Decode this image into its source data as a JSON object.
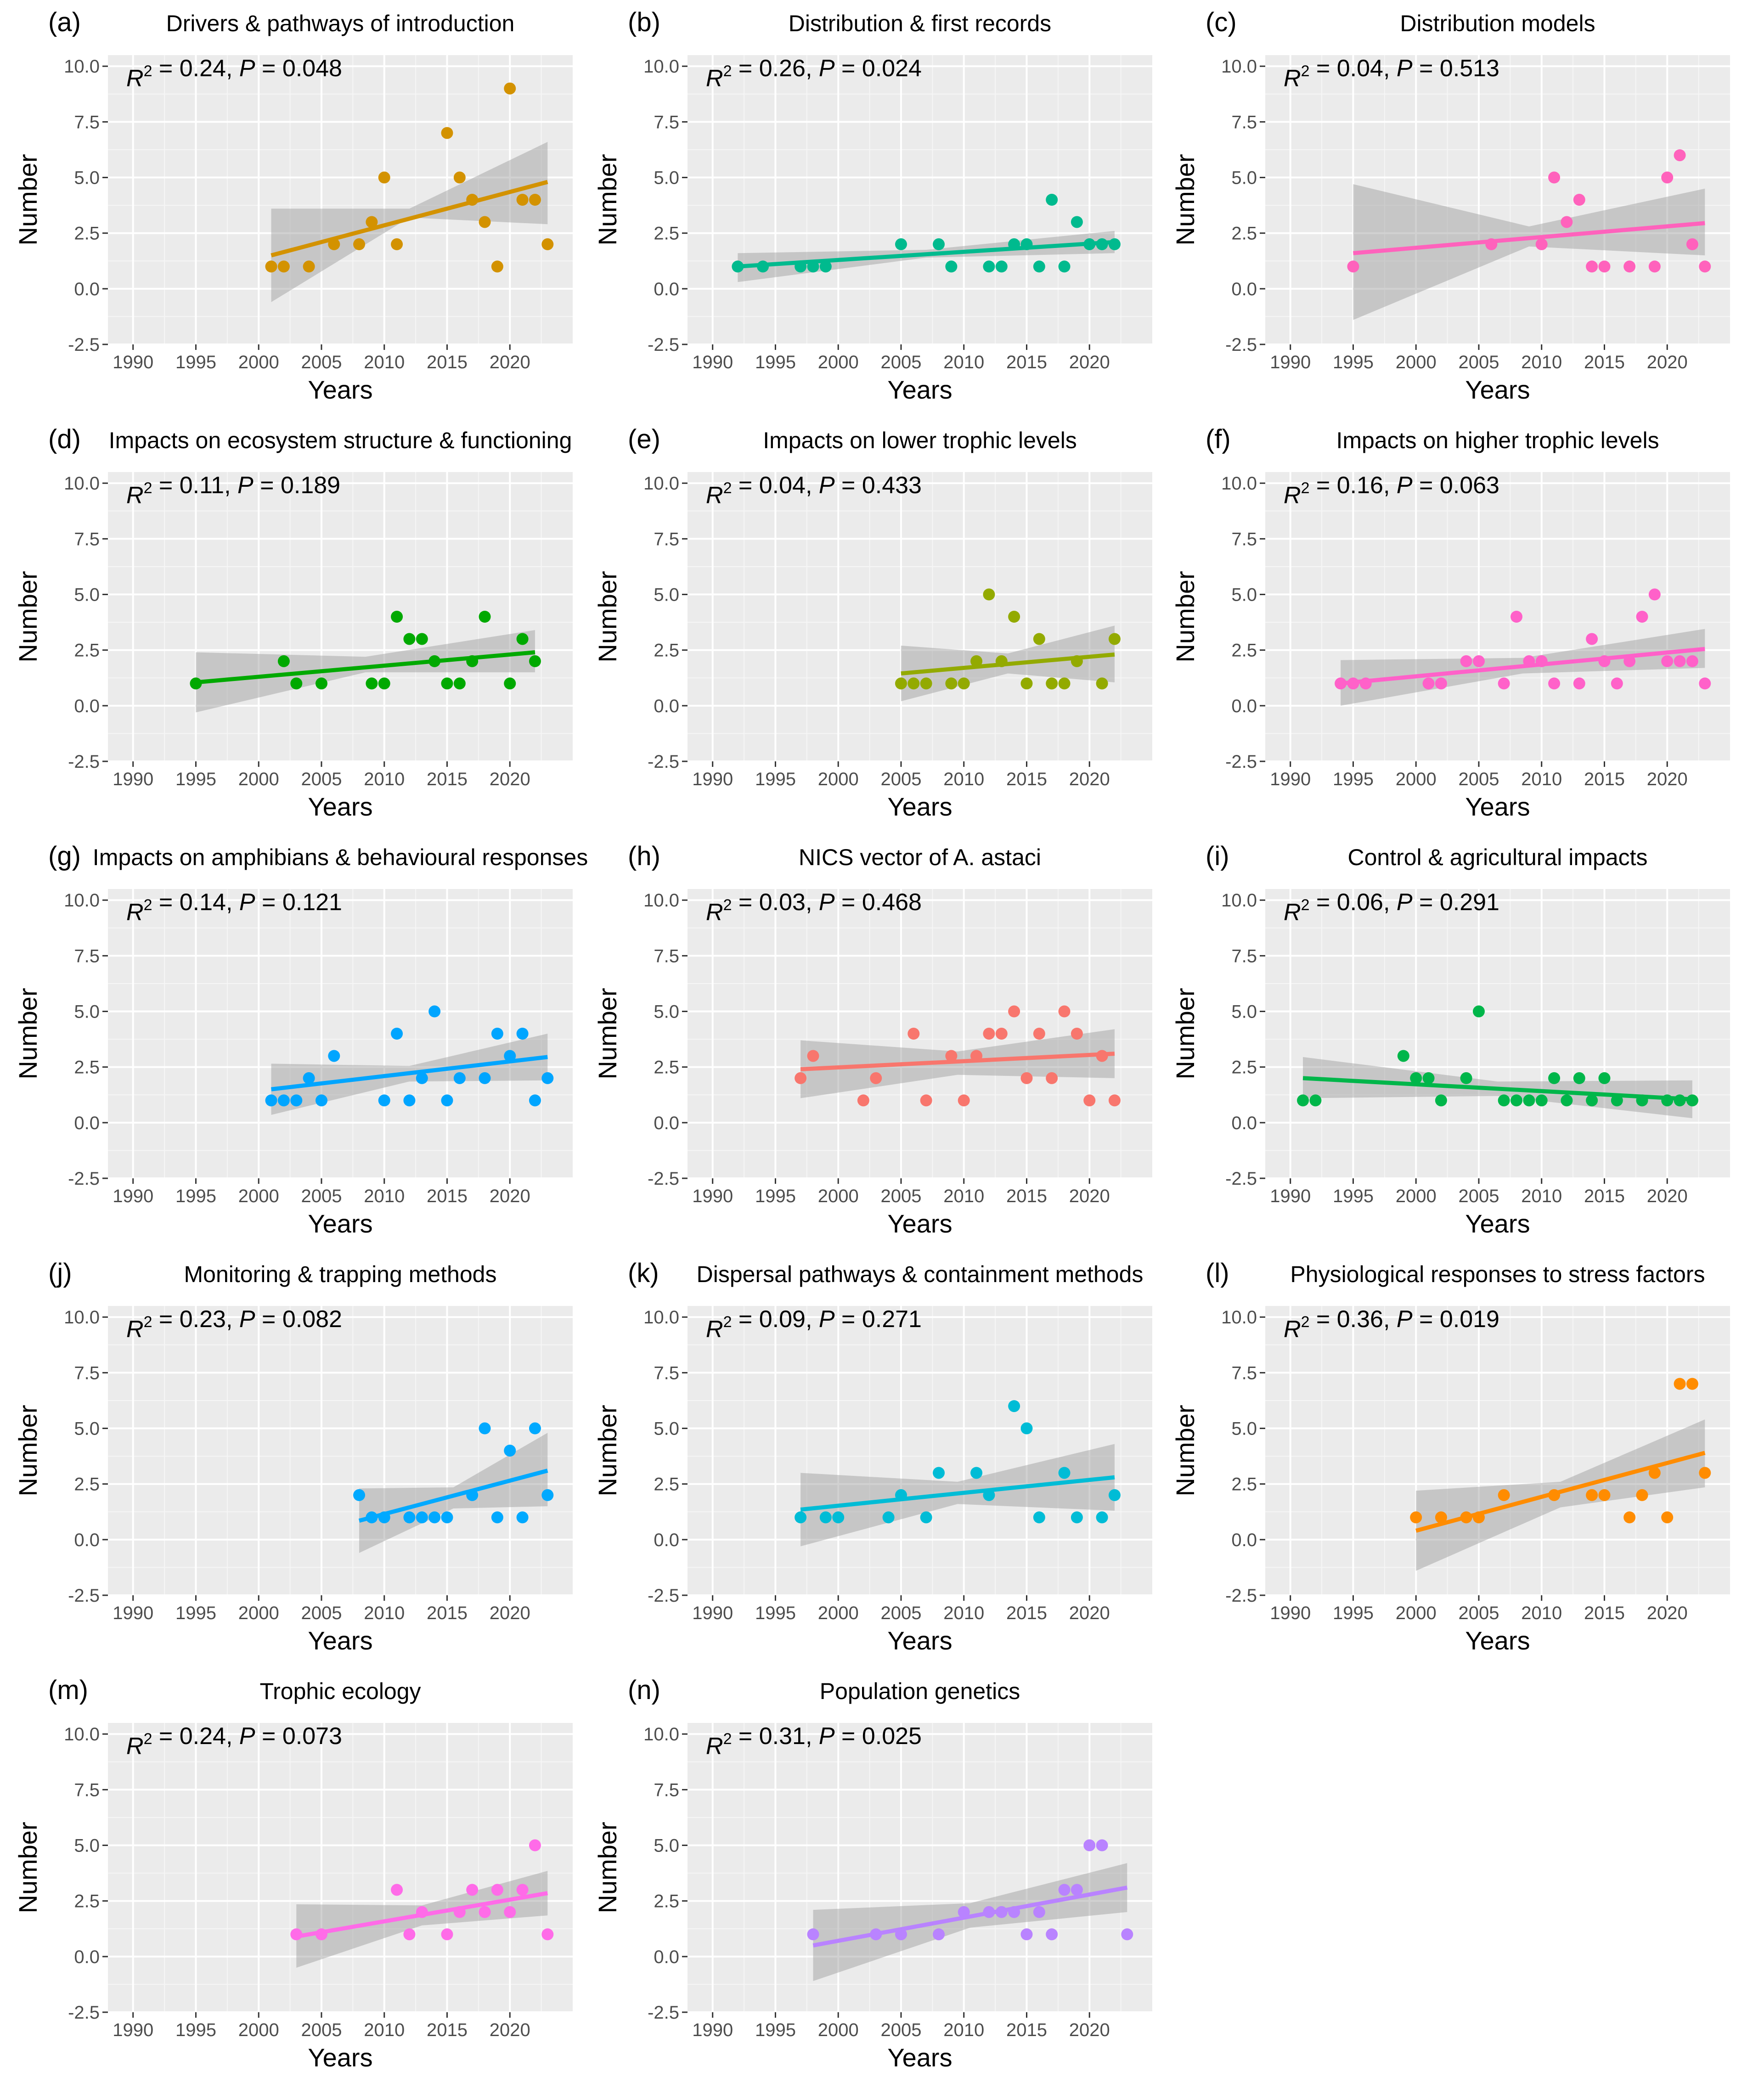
{
  "figure": {
    "x_axis_title": "Years",
    "y_axis_title": "Number"
  },
  "chart_data": [
    {
      "id": "a",
      "letter": "(a)",
      "type": "scatter",
      "title": "Drivers & pathways of introduction",
      "stats": {
        "r2": "0.24",
        "p": "0.048"
      },
      "color": "#D39200",
      "xlabel": "Years",
      "ylabel": "Number",
      "xlim": [
        1988,
        2025
      ],
      "ylim": [
        -2.5,
        10.5
      ],
      "x_ticks": [
        1990,
        1995,
        2000,
        2005,
        2010,
        2015,
        2020
      ],
      "y_ticks": [
        "-2.5",
        "0.0",
        "2.5",
        "5.0",
        "7.5",
        "10.0"
      ],
      "x": [
        2001,
        2002,
        2004,
        2006,
        2008,
        2009,
        2010,
        2011,
        2015,
        2016,
        2017,
        2018,
        2019,
        2020,
        2021,
        2022,
        2023
      ],
      "y": [
        1,
        1,
        1,
        2,
        2,
        3,
        5,
        2,
        7,
        5,
        4,
        3,
        1,
        9,
        4,
        4,
        2
      ],
      "fit": {
        "x0": 2001,
        "x1": 2023,
        "y0": 1.5,
        "y1": 4.8
      },
      "ci": {
        "lower": [
          -0.6,
          3.2,
          2.9
        ],
        "upper": [
          3.6,
          3.6,
          6.6
        ]
      }
    },
    {
      "id": "b",
      "letter": "(b)",
      "type": "scatter",
      "title": "Distribution & first records",
      "stats": {
        "r2": "0.26",
        "p": "0.024"
      },
      "color": "#00BA8E",
      "xlabel": "Years",
      "ylabel": "Number",
      "xlim": [
        1988,
        2025
      ],
      "ylim": [
        -2.5,
        10.5
      ],
      "x_ticks": [
        1990,
        1995,
        2000,
        2005,
        2010,
        2015,
        2020
      ],
      "y_ticks": [
        "-2.5",
        "0.0",
        "2.5",
        "5.0",
        "7.5",
        "10.0"
      ],
      "x": [
        1992,
        1994,
        1997,
        1998,
        1999,
        2005,
        2008,
        2009,
        2012,
        2013,
        2014,
        2015,
        2016,
        2017,
        2018,
        2019,
        2020,
        2021,
        2022
      ],
      "y": [
        1,
        1,
        1,
        1,
        1,
        2,
        2,
        1,
        1,
        1,
        2,
        2,
        1,
        4,
        1,
        3,
        2,
        2,
        2
      ],
      "fit": {
        "x0": 1992,
        "x1": 2022,
        "y0": 1.0,
        "y1": 2.1
      },
      "ci": {
        "lower": [
          0.3,
          1.4,
          1.6
        ],
        "upper": [
          1.6,
          1.75,
          2.6
        ]
      }
    },
    {
      "id": "c",
      "letter": "(c)",
      "type": "scatter",
      "title": "Distribution models",
      "stats": {
        "r2": "0.04",
        "p": "0.513"
      },
      "color": "#FF62BC",
      "xlabel": "Years",
      "ylabel": "Number",
      "xlim": [
        1988,
        2025
      ],
      "ylim": [
        -2.5,
        10.5
      ],
      "x_ticks": [
        1990,
        1995,
        2000,
        2005,
        2010,
        2015,
        2020
      ],
      "y_ticks": [
        "-2.5",
        "0.0",
        "2.5",
        "5.0",
        "7.5",
        "10.0"
      ],
      "x": [
        1995,
        2006,
        2010,
        2011,
        2012,
        2013,
        2014,
        2015,
        2017,
        2019,
        2020,
        2021,
        2022,
        2023
      ],
      "y": [
        1,
        2,
        2,
        5,
        3,
        4,
        1,
        1,
        1,
        1,
        5,
        6,
        2,
        1
      ],
      "fit": {
        "x0": 1995,
        "x1": 2023,
        "y0": 1.6,
        "y1": 2.95
      },
      "ci": {
        "lower": [
          -1.4,
          1.9,
          1.5
        ],
        "upper": [
          4.7,
          2.8,
          4.5
        ]
      }
    },
    {
      "id": "d",
      "letter": "(d)",
      "type": "scatter",
      "title": "Impacts on ecosystem structure & functioning",
      "stats": {
        "r2": "0.11",
        "p": "0.189"
      },
      "color": "#00A900",
      "xlabel": "Years",
      "ylabel": "Number",
      "xlim": [
        1988,
        2025
      ],
      "ylim": [
        -2.5,
        10.5
      ],
      "x_ticks": [
        1990,
        1995,
        2000,
        2005,
        2010,
        2015,
        2020
      ],
      "y_ticks": [
        "-2.5",
        "0.0",
        "2.5",
        "5.0",
        "7.5",
        "10.0"
      ],
      "x": [
        1995,
        2002,
        2003,
        2005,
        2009,
        2010,
        2011,
        2012,
        2013,
        2014,
        2015,
        2016,
        2017,
        2018,
        2020,
        2021,
        2022
      ],
      "y": [
        1,
        2,
        1,
        1,
        1,
        1,
        4,
        3,
        3,
        2,
        1,
        1,
        2,
        4,
        1,
        3,
        2
      ],
      "fit": {
        "x0": 1995,
        "x1": 2022,
        "y0": 1.05,
        "y1": 2.4
      },
      "ci": {
        "lower": [
          -0.3,
          1.5,
          1.5
        ],
        "upper": [
          2.4,
          2.2,
          3.4
        ]
      }
    },
    {
      "id": "e",
      "letter": "(e)",
      "type": "scatter",
      "title": "Impacts on lower trophic levels",
      "stats": {
        "r2": "0.04",
        "p": "0.433"
      },
      "color": "#93AA00",
      "xlabel": "Years",
      "ylabel": "Number",
      "xlim": [
        1988,
        2025
      ],
      "ylim": [
        -2.5,
        10.5
      ],
      "x_ticks": [
        1990,
        1995,
        2000,
        2005,
        2010,
        2015,
        2020
      ],
      "y_ticks": [
        "-2.5",
        "0.0",
        "2.5",
        "5.0",
        "7.5",
        "10.0"
      ],
      "x": [
        2005,
        2006,
        2007,
        2009,
        2010,
        2011,
        2012,
        2013,
        2014,
        2015,
        2016,
        2017,
        2018,
        2019,
        2021,
        2022
      ],
      "y": [
        1,
        1,
        1,
        1,
        1,
        2,
        5,
        2,
        4,
        1,
        3,
        1,
        1,
        2,
        1,
        3
      ],
      "fit": {
        "x0": 2005,
        "x1": 2022,
        "y0": 1.45,
        "y1": 2.3
      },
      "ci": {
        "lower": [
          0.2,
          1.45,
          1.05
        ],
        "upper": [
          2.7,
          2.35,
          3.6
        ]
      }
    },
    {
      "id": "f",
      "letter": "(f)",
      "type": "scatter",
      "title": "Impacts on higher trophic levels",
      "stats": {
        "r2": "0.16",
        "p": "0.063"
      },
      "color": "#FF61C9",
      "xlabel": "Years",
      "ylabel": "Number",
      "xlim": [
        1988,
        2025
      ],
      "ylim": [
        -2.5,
        10.5
      ],
      "x_ticks": [
        1990,
        1995,
        2000,
        2005,
        2010,
        2015,
        2020
      ],
      "y_ticks": [
        "-2.5",
        "0.0",
        "2.5",
        "5.0",
        "7.5",
        "10.0"
      ],
      "x": [
        1994,
        1995,
        1996,
        2001,
        2002,
        2004,
        2005,
        2007,
        2008,
        2009,
        2010,
        2011,
        2013,
        2014,
        2015,
        2016,
        2017,
        2018,
        2019,
        2020,
        2021,
        2022,
        2023
      ],
      "y": [
        1,
        1,
        1,
        1,
        1,
        2,
        2,
        1,
        4,
        2,
        2,
        1,
        1,
        3,
        2,
        1,
        2,
        4,
        5,
        2,
        2,
        2,
        1
      ],
      "fit": {
        "x0": 1994,
        "x1": 2023,
        "y0": 1.0,
        "y1": 2.55
      },
      "ci": {
        "lower": [
          0.0,
          1.45,
          1.7
        ],
        "upper": [
          2.05,
          2.15,
          3.45
        ]
      }
    },
    {
      "id": "g",
      "letter": "(g)",
      "type": "scatter",
      "title": "Impacts on amphibians & behavioural responses",
      "stats": {
        "r2": "0.14",
        "p": "0.121"
      },
      "color": "#00A5FF",
      "xlabel": "Years",
      "ylabel": "Number",
      "xlim": [
        1988,
        2025
      ],
      "ylim": [
        -2.5,
        10.5
      ],
      "x_ticks": [
        1990,
        1995,
        2000,
        2005,
        2010,
        2015,
        2020
      ],
      "y_ticks": [
        "-2.5",
        "0.0",
        "2.5",
        "5.0",
        "7.5",
        "10.0"
      ],
      "x": [
        2001,
        2002,
        2003,
        2004,
        2005,
        2006,
        2010,
        2011,
        2012,
        2013,
        2014,
        2015,
        2016,
        2018,
        2019,
        2020,
        2021,
        2022,
        2023
      ],
      "y": [
        1,
        1,
        1,
        2,
        1,
        3,
        1,
        4,
        1,
        2,
        5,
        1,
        2,
        2,
        4,
        3,
        4,
        1,
        2
      ],
      "fit": {
        "x0": 2001,
        "x1": 2023,
        "y0": 1.5,
        "y1": 2.95
      },
      "ci": {
        "lower": [
          0.35,
          1.85,
          1.9
        ],
        "upper": [
          2.65,
          2.55,
          4.0
        ]
      }
    },
    {
      "id": "h",
      "letter": "(h)",
      "type": "scatter",
      "title": "NICS vector of A. astaci",
      "stats": {
        "r2": "0.03",
        "p": "0.468"
      },
      "color": "#F8766D",
      "xlabel": "Years",
      "ylabel": "Number",
      "xlim": [
        1988,
        2025
      ],
      "ylim": [
        -2.5,
        10.5
      ],
      "x_ticks": [
        1990,
        1995,
        2000,
        2005,
        2010,
        2015,
        2020
      ],
      "y_ticks": [
        "-2.5",
        "0.0",
        "2.5",
        "5.0",
        "7.5",
        "10.0"
      ],
      "x": [
        1997,
        1998,
        2002,
        2003,
        2006,
        2007,
        2009,
        2010,
        2011,
        2012,
        2013,
        2014,
        2015,
        2016,
        2017,
        2018,
        2019,
        2020,
        2021,
        2022
      ],
      "y": [
        2,
        3,
        1,
        2,
        4,
        1,
        3,
        1,
        3,
        4,
        4,
        5,
        2,
        4,
        2,
        5,
        4,
        1,
        3,
        1
      ],
      "fit": {
        "x0": 1997,
        "x1": 2022,
        "y0": 2.4,
        "y1": 3.1
      },
      "ci": {
        "lower": [
          1.1,
          2.15,
          2.0
        ],
        "upper": [
          3.7,
          3.2,
          4.2
        ]
      }
    },
    {
      "id": "i",
      "letter": "(i)",
      "type": "scatter",
      "title": "Control & agricultural impacts",
      "stats": {
        "r2": "0.06",
        "p": "0.291"
      },
      "color": "#00B64A",
      "xlabel": "Years",
      "ylabel": "Number",
      "xlim": [
        1988,
        2025
      ],
      "ylim": [
        -2.5,
        10.5
      ],
      "x_ticks": [
        1990,
        1995,
        2000,
        2005,
        2010,
        2015,
        2020
      ],
      "y_ticks": [
        "-2.5",
        "0.0",
        "2.5",
        "5.0",
        "7.5",
        "10.0"
      ],
      "x": [
        1991,
        1992,
        1999,
        2000,
        2001,
        2002,
        2004,
        2005,
        2007,
        2008,
        2009,
        2010,
        2011,
        2012,
        2013,
        2014,
        2015,
        2016,
        2018,
        2020,
        2021,
        2022
      ],
      "y": [
        1,
        1,
        3,
        2,
        2,
        1,
        2,
        5,
        1,
        1,
        1,
        1,
        2,
        1,
        2,
        1,
        2,
        1,
        1,
        1,
        1,
        1
      ],
      "fit": {
        "x0": 1991,
        "x1": 2022,
        "y0": 2.0,
        "y1": 1.05
      },
      "ci": {
        "lower": [
          1.1,
          1.2,
          0.2
        ],
        "upper": [
          2.95,
          1.85,
          1.9
        ]
      }
    },
    {
      "id": "j",
      "letter": "(j)",
      "type": "scatter",
      "title": "Monitoring & trapping methods",
      "stats": {
        "r2": "0.23",
        "p": "0.082"
      },
      "color": "#00A9FF",
      "xlabel": "Years",
      "ylabel": "Number",
      "xlim": [
        1988,
        2025
      ],
      "ylim": [
        -2.5,
        10.5
      ],
      "x_ticks": [
        1990,
        1995,
        2000,
        2005,
        2010,
        2015,
        2020
      ],
      "y_ticks": [
        "-2.5",
        "0.0",
        "2.5",
        "5.0",
        "7.5",
        "10.0"
      ],
      "x": [
        2008,
        2009,
        2010,
        2012,
        2013,
        2014,
        2015,
        2017,
        2018,
        2019,
        2020,
        2021,
        2022,
        2023
      ],
      "y": [
        2,
        1,
        1,
        1,
        1,
        1,
        1,
        2,
        5,
        1,
        4,
        1,
        5,
        2
      ],
      "fit": {
        "x0": 2008,
        "x1": 2023,
        "y0": 0.85,
        "y1": 3.1
      },
      "ci": {
        "lower": [
          -0.6,
          1.4,
          1.5
        ],
        "upper": [
          2.3,
          2.35,
          4.8
        ]
      }
    },
    {
      "id": "k",
      "letter": "(k)",
      "type": "scatter",
      "title": "Dispersal pathways & containment methods",
      "stats": {
        "r2": "0.09",
        "p": "0.271"
      },
      "color": "#00BCD6",
      "xlabel": "Years",
      "ylabel": "Number",
      "xlim": [
        1988,
        2025
      ],
      "ylim": [
        -2.5,
        10.5
      ],
      "x_ticks": [
        1990,
        1995,
        2000,
        2005,
        2010,
        2015,
        2020
      ],
      "y_ticks": [
        "-2.5",
        "0.0",
        "2.5",
        "5.0",
        "7.5",
        "10.0"
      ],
      "x": [
        1997,
        1999,
        2000,
        2004,
        2005,
        2007,
        2008,
        2011,
        2012,
        2014,
        2015,
        2016,
        2018,
        2019,
        2021,
        2022
      ],
      "y": [
        1,
        1,
        1,
        1,
        2,
        1,
        3,
        3,
        2,
        6,
        5,
        1,
        3,
        1,
        1,
        2
      ],
      "fit": {
        "x0": 1997,
        "x1": 2022,
        "y0": 1.35,
        "y1": 2.8
      },
      "ci": {
        "lower": [
          -0.3,
          1.6,
          1.3
        ],
        "upper": [
          3.0,
          2.6,
          4.3
        ]
      }
    },
    {
      "id": "l",
      "letter": "(l)",
      "type": "scatter",
      "title": "Physiological responses to stress factors",
      "stats": {
        "r2": "0.36",
        "p": "0.019"
      },
      "color": "#FF8C00",
      "xlabel": "Years",
      "ylabel": "Number",
      "xlim": [
        1988,
        2025
      ],
      "ylim": [
        -2.5,
        10.5
      ],
      "x_ticks": [
        1990,
        1995,
        2000,
        2005,
        2010,
        2015,
        2020
      ],
      "y_ticks": [
        "-2.5",
        "0.0",
        "2.5",
        "5.0",
        "7.5",
        "10.0"
      ],
      "x": [
        2000,
        2002,
        2004,
        2005,
        2007,
        2011,
        2014,
        2015,
        2017,
        2018,
        2019,
        2020,
        2021,
        2022,
        2023
      ],
      "y": [
        1,
        1,
        1,
        1,
        2,
        2,
        2,
        2,
        1,
        2,
        3,
        1,
        7,
        7,
        3
      ],
      "fit": {
        "x0": 2000,
        "x1": 2023,
        "y0": 0.4,
        "y1": 3.9
      },
      "ci": {
        "lower": [
          -1.4,
          1.45,
          2.35
        ],
        "upper": [
          2.2,
          2.6,
          5.4
        ]
      }
    },
    {
      "id": "m",
      "letter": "(m)",
      "type": "scatter",
      "title": "Trophic ecology",
      "stats": {
        "r2": "0.24",
        "p": "0.073"
      },
      "color": "#FF6BE8",
      "xlabel": "Years",
      "ylabel": "Number",
      "xlim": [
        1988,
        2025
      ],
      "ylim": [
        -2.5,
        10.5
      ],
      "x_ticks": [
        1990,
        1995,
        2000,
        2005,
        2010,
        2015,
        2020
      ],
      "y_ticks": [
        "-2.5",
        "0.0",
        "2.5",
        "5.0",
        "7.5",
        "10.0"
      ],
      "x": [
        2003,
        2005,
        2011,
        2012,
        2013,
        2015,
        2016,
        2017,
        2018,
        2019,
        2020,
        2021,
        2022,
        2023
      ],
      "y": [
        1,
        1,
        3,
        1,
        2,
        1,
        2,
        3,
        2,
        3,
        2,
        3,
        5,
        1
      ],
      "fit": {
        "x0": 2003,
        "x1": 2023,
        "y0": 0.9,
        "y1": 2.85
      },
      "ci": {
        "lower": [
          -0.5,
          1.4,
          1.85
        ],
        "upper": [
          2.35,
          2.3,
          3.85
        ]
      }
    },
    {
      "id": "n",
      "letter": "(n)",
      "type": "scatter",
      "title": "Population genetics",
      "stats": {
        "r2": "0.31",
        "p": "0.025"
      },
      "color": "#B983FF",
      "xlabel": "Years",
      "ylabel": "Number",
      "xlim": [
        1988,
        2025
      ],
      "ylim": [
        -2.5,
        10.5
      ],
      "x_ticks": [
        1990,
        1995,
        2000,
        2005,
        2010,
        2015,
        2020
      ],
      "y_ticks": [
        "-2.5",
        "0.0",
        "2.5",
        "5.0",
        "7.5",
        "10.0"
      ],
      "x": [
        1998,
        2003,
        2005,
        2008,
        2010,
        2012,
        2013,
        2014,
        2015,
        2016,
        2017,
        2018,
        2019,
        2020,
        2021,
        2023
      ],
      "y": [
        1,
        1,
        1,
        1,
        2,
        2,
        2,
        2,
        1,
        2,
        1,
        3,
        3,
        5,
        5,
        1
      ],
      "fit": {
        "x0": 1998,
        "x1": 2023,
        "y0": 0.5,
        "y1": 3.1
      },
      "ci": {
        "lower": [
          -1.1,
          1.3,
          2.0
        ],
        "upper": [
          2.1,
          2.4,
          4.2
        ]
      }
    }
  ]
}
